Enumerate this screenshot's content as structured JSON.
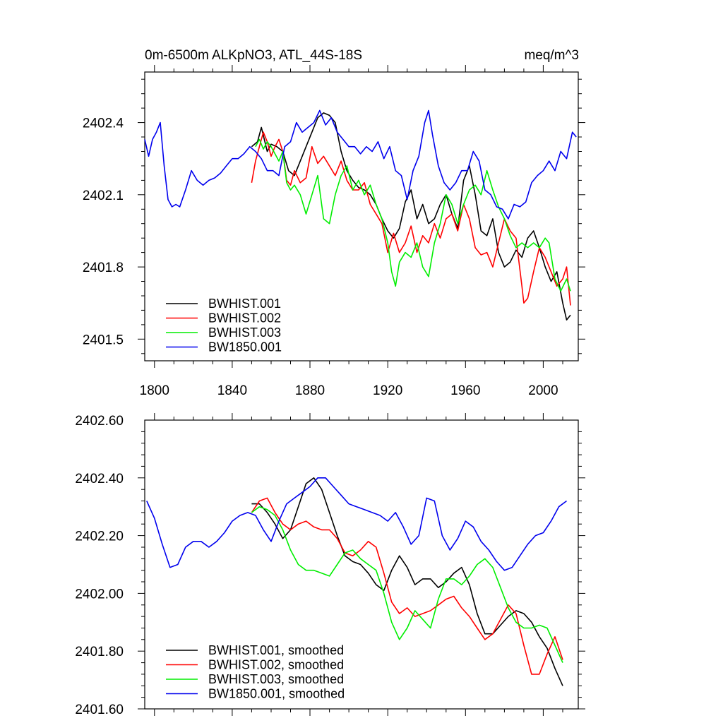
{
  "chart_data": [
    {
      "type": "line",
      "title": "0m-6500m ALKpNO3, ATL_44S-18S",
      "units": "meq/m^3",
      "xlim": [
        1795,
        2018
      ],
      "ylim": [
        2401.41,
        2402.61
      ],
      "x_ticks": [
        1800,
        1840,
        1880,
        1920,
        1960,
        2000
      ],
      "x_tick_labels": [
        "1800",
        "1840",
        "1880",
        "1920",
        "1960",
        "2000"
      ],
      "y_ticks": [
        2401.5,
        2401.8,
        2402.1,
        2402.4
      ],
      "y_tick_labels": [
        "2401.5",
        "2401.8",
        "2402.1",
        "2402.4"
      ],
      "legend": "bottom-left",
      "series": [
        {
          "name": "BWHIST.001",
          "color": "#000000",
          "x": [
            1850,
            1853,
            1855,
            1858,
            1860,
            1863,
            1866,
            1869,
            1872,
            1875,
            1878,
            1881,
            1884,
            1887,
            1890,
            1893,
            1896,
            1899,
            1902,
            1905,
            1908,
            1911,
            1914,
            1917,
            1920,
            1923,
            1926,
            1929,
            1932,
            1935,
            1938,
            1941,
            1944,
            1947,
            1950,
            1953,
            1956,
            1959,
            1962,
            1965,
            1968,
            1971,
            1974,
            1977,
            1980,
            1983,
            1986,
            1989,
            1992,
            1995,
            1998,
            2001,
            2004,
            2007,
            2010,
            2012,
            2014
          ],
          "y": [
            2402.3,
            2402.32,
            2402.38,
            2402.28,
            2402.31,
            2402.3,
            2402.28,
            2402.2,
            2402.18,
            2402.24,
            2402.3,
            2402.36,
            2402.42,
            2402.44,
            2402.43,
            2402.4,
            2402.28,
            2402.2,
            2402.16,
            2402.13,
            2402.12,
            2402.1,
            2402.06,
            2402.0,
            2401.95,
            2401.92,
            2401.96,
            2402.07,
            2402.12,
            2402.0,
            2402.06,
            2401.98,
            2402.0,
            2402.06,
            2402.1,
            2402.02,
            2401.96,
            2402.16,
            2402.22,
            2402.1,
            2401.95,
            2401.93,
            2402.0,
            2401.86,
            2401.8,
            2401.82,
            2401.87,
            2401.84,
            2401.92,
            2401.95,
            2401.88,
            2401.8,
            2401.74,
            2401.78,
            2401.65,
            2401.58,
            2401.6
          ]
        },
        {
          "name": "BWHIST.002",
          "color": "#ff0000",
          "x": [
            1850,
            1852,
            1854,
            1856,
            1858,
            1860,
            1862,
            1864,
            1866,
            1868,
            1870,
            1872,
            1875,
            1878,
            1881,
            1884,
            1887,
            1890,
            1893,
            1896,
            1899,
            1902,
            1905,
            1908,
            1911,
            1914,
            1917,
            1920,
            1923,
            1926,
            1929,
            1932,
            1935,
            1938,
            1941,
            1944,
            1947,
            1950,
            1953,
            1956,
            1959,
            1962,
            1965,
            1968,
            1971,
            1974,
            1977,
            1980,
            1983,
            1986,
            1989,
            1990,
            1992,
            1995,
            1998,
            2001,
            2004,
            2007,
            2010,
            2012,
            2014
          ],
          "y": [
            2402.15,
            2402.24,
            2402.3,
            2402.36,
            2402.32,
            2402.26,
            2402.3,
            2402.33,
            2402.28,
            2402.16,
            2402.14,
            2402.2,
            2402.15,
            2402.17,
            2402.3,
            2402.23,
            2402.26,
            2402.22,
            2402.18,
            2402.24,
            2402.16,
            2402.12,
            2402.12,
            2402.15,
            2402.06,
            2402.02,
            2401.98,
            2401.86,
            2401.94,
            2401.86,
            2401.9,
            2401.97,
            2401.86,
            2401.93,
            2401.9,
            2401.98,
            2401.92,
            2402.0,
            2402.02,
            2401.95,
            2402.06,
            2402.0,
            2401.88,
            2401.85,
            2401.86,
            2401.8,
            2401.9,
            2402.0,
            2401.95,
            2401.92,
            2401.72,
            2401.65,
            2401.67,
            2401.78,
            2401.88,
            2401.84,
            2401.78,
            2401.72,
            2401.75,
            2401.8,
            2401.64
          ]
        },
        {
          "name": "BWHIST.003",
          "color": "#00ee00",
          "x": [
            1852,
            1854,
            1856,
            1858,
            1860,
            1862,
            1864,
            1866,
            1868,
            1870,
            1872,
            1875,
            1878,
            1881,
            1884,
            1887,
            1890,
            1893,
            1896,
            1899,
            1902,
            1905,
            1908,
            1911,
            1914,
            1917,
            1920,
            1922,
            1924,
            1926,
            1929,
            1932,
            1935,
            1938,
            1941,
            1944,
            1947,
            1950,
            1953,
            1956,
            1959,
            1962,
            1965,
            1968,
            1971,
            1974,
            1977,
            1980,
            1983,
            1986,
            1989,
            1992,
            1995,
            1998,
            2001,
            2003,
            2006,
            2009,
            2012,
            2014
          ],
          "y": [
            2402.3,
            2402.33,
            2402.29,
            2402.32,
            2402.3,
            2402.27,
            2402.24,
            2402.28,
            2402.15,
            2402.12,
            2402.14,
            2402.1,
            2402.02,
            2402.1,
            2402.18,
            2402.0,
            2401.98,
            2402.1,
            2402.18,
            2402.22,
            2402.12,
            2402.16,
            2402.1,
            2402.14,
            2402.06,
            2402.0,
            2401.9,
            2401.78,
            2401.72,
            2401.82,
            2401.86,
            2401.84,
            2401.9,
            2401.8,
            2401.76,
            2401.9,
            2401.98,
            2402.1,
            2402.06,
            2401.98,
            2402.06,
            2402.12,
            2402.14,
            2402.1,
            2402.2,
            2402.12,
            2402.05,
            2402.0,
            2401.93,
            2401.88,
            2401.9,
            2401.88,
            2401.9,
            2401.88,
            2401.92,
            2401.9,
            2401.75,
            2401.7,
            2401.75,
            2401.7
          ]
        },
        {
          "name": "BW1850.001",
          "color": "#0000ee",
          "x": [
            1795,
            1797,
            1799,
            1801,
            1803,
            1805,
            1807,
            1809,
            1811,
            1813,
            1816,
            1819,
            1822,
            1825,
            1828,
            1831,
            1834,
            1837,
            1840,
            1843,
            1846,
            1849,
            1852,
            1855,
            1858,
            1861,
            1864,
            1867,
            1870,
            1873,
            1876,
            1879,
            1882,
            1885,
            1888,
            1891,
            1894,
            1897,
            1900,
            1903,
            1906,
            1909,
            1912,
            1915,
            1918,
            1921,
            1924,
            1927,
            1930,
            1933,
            1936,
            1939,
            1941,
            1943,
            1946,
            1949,
            1952,
            1955,
            1958,
            1961,
            1964,
            1967,
            1970,
            1973,
            1976,
            1979,
            1982,
            1985,
            1988,
            1991,
            1994,
            1997,
            2000,
            2003,
            2006,
            2009,
            2012,
            2015,
            2017
          ],
          "y": [
            2402.33,
            2402.26,
            2402.33,
            2402.36,
            2402.4,
            2402.22,
            2402.08,
            2402.05,
            2402.06,
            2402.05,
            2402.12,
            2402.2,
            2402.16,
            2402.14,
            2402.16,
            2402.17,
            2402.19,
            2402.22,
            2402.25,
            2402.25,
            2402.27,
            2402.3,
            2402.28,
            2402.25,
            2402.2,
            2402.2,
            2402.18,
            2402.3,
            2402.32,
            2402.4,
            2402.36,
            2402.38,
            2402.4,
            2402.45,
            2402.39,
            2402.42,
            2402.36,
            2402.33,
            2402.3,
            2402.3,
            2402.27,
            2402.3,
            2402.28,
            2402.32,
            2402.25,
            2402.3,
            2402.2,
            2402.18,
            2402.08,
            2402.2,
            2402.26,
            2402.4,
            2402.45,
            2402.35,
            2402.22,
            2402.15,
            2402.12,
            2402.15,
            2402.2,
            2402.2,
            2402.28,
            2402.24,
            2402.12,
            2402.1,
            2402.05,
            2402.04,
            2402.0,
            2402.06,
            2402.05,
            2402.07,
            2402.15,
            2402.18,
            2402.2,
            2402.24,
            2402.2,
            2402.28,
            2402.25,
            2402.36,
            2402.34
          ]
        }
      ]
    },
    {
      "type": "line",
      "title": "",
      "xlim": [
        1795,
        2018
      ],
      "ylim": [
        2401.6,
        2402.6
      ],
      "x_ticks": [
        1800,
        1840,
        1880,
        1920,
        1960,
        2000
      ],
      "y_ticks": [
        2401.6,
        2401.8,
        2402.0,
        2402.2,
        2402.4,
        2402.6
      ],
      "y_tick_labels": [
        "2401.60",
        "2401.80",
        "2402.00",
        "2402.20",
        "2402.40",
        "2402.60"
      ],
      "legend": "bottom-left",
      "series": [
        {
          "name": "BWHIST.001, smoothed",
          "color": "#000000",
          "x": [
            1850,
            1854,
            1858,
            1862,
            1866,
            1870,
            1874,
            1878,
            1882,
            1886,
            1890,
            1894,
            1898,
            1902,
            1906,
            1910,
            1914,
            1918,
            1922,
            1926,
            1930,
            1934,
            1938,
            1942,
            1946,
            1950,
            1954,
            1958,
            1962,
            1966,
            1970,
            1974,
            1978,
            1982,
            1986,
            1990,
            1994,
            1998,
            2002,
            2006,
            2010
          ],
          "y": [
            2402.31,
            2402.31,
            2402.28,
            2402.24,
            2402.19,
            2402.22,
            2402.3,
            2402.38,
            2402.4,
            2402.36,
            2402.28,
            2402.2,
            2402.13,
            2402.11,
            2402.1,
            2402.07,
            2402.03,
            2402.01,
            2402.08,
            2402.13,
            2402.09,
            2402.03,
            2402.05,
            2402.05,
            2402.02,
            2402.04,
            2402.07,
            2402.09,
            2402.03,
            2401.93,
            2401.86,
            2401.86,
            2401.89,
            2401.92,
            2401.94,
            2401.93,
            2401.9,
            2401.85,
            2401.81,
            2401.74,
            2401.68
          ]
        },
        {
          "name": "BWHIST.002, smoothed",
          "color": "#ff0000",
          "x": [
            1850,
            1854,
            1858,
            1862,
            1866,
            1870,
            1874,
            1878,
            1882,
            1886,
            1890,
            1894,
            1898,
            1902,
            1906,
            1910,
            1914,
            1918,
            1922,
            1926,
            1930,
            1934,
            1938,
            1942,
            1946,
            1950,
            1954,
            1958,
            1962,
            1966,
            1970,
            1974,
            1978,
            1982,
            1986,
            1990,
            1994,
            1998,
            2002,
            2006,
            2010
          ],
          "y": [
            2402.28,
            2402.32,
            2402.33,
            2402.28,
            2402.24,
            2402.22,
            2402.24,
            2402.25,
            2402.23,
            2402.22,
            2402.22,
            2402.19,
            2402.14,
            2402.13,
            2402.15,
            2402.18,
            2402.16,
            2402.07,
            2401.97,
            2401.93,
            2401.95,
            2401.92,
            2401.93,
            2401.94,
            2401.96,
            2401.98,
            2401.99,
            2401.95,
            2401.92,
            2401.88,
            2401.84,
            2401.86,
            2401.91,
            2401.96,
            2401.93,
            2401.82,
            2401.72,
            2401.72,
            2401.79,
            2401.85,
            2401.77
          ]
        },
        {
          "name": "BWHIST.003, smoothed",
          "color": "#00ee00",
          "x": [
            1850,
            1854,
            1858,
            1862,
            1866,
            1870,
            1874,
            1878,
            1882,
            1886,
            1890,
            1894,
            1898,
            1902,
            1906,
            1910,
            1914,
            1918,
            1922,
            1926,
            1930,
            1934,
            1938,
            1942,
            1946,
            1950,
            1954,
            1958,
            1962,
            1966,
            1970,
            1974,
            1978,
            1982,
            1986,
            1990,
            1994,
            1998,
            2002,
            2006,
            2010
          ],
          "y": [
            2402.28,
            2402.3,
            2402.29,
            2402.27,
            2402.22,
            2402.15,
            2402.1,
            2402.08,
            2402.08,
            2402.07,
            2402.06,
            2402.1,
            2402.14,
            2402.15,
            2402.12,
            2402.1,
            2402.08,
            2402.0,
            2401.9,
            2401.84,
            2401.88,
            2401.94,
            2401.91,
            2401.88,
            2401.98,
            2402.05,
            2402.05,
            2402.03,
            2402.06,
            2402.1,
            2402.12,
            2402.09,
            2402.02,
            2401.95,
            2401.9,
            2401.88,
            2401.88,
            2401.89,
            2401.88,
            2401.82,
            2401.76
          ]
        },
        {
          "name": "BW1850.001, smoothed",
          "color": "#0000ee",
          "x": [
            1796,
            1800,
            1804,
            1808,
            1812,
            1816,
            1820,
            1824,
            1828,
            1832,
            1836,
            1840,
            1844,
            1848,
            1852,
            1856,
            1860,
            1864,
            1868,
            1872,
            1876,
            1880,
            1884,
            1888,
            1892,
            1896,
            1900,
            1904,
            1908,
            1912,
            1916,
            1920,
            1924,
            1928,
            1932,
            1936,
            1940,
            1944,
            1948,
            1952,
            1956,
            1960,
            1964,
            1968,
            1972,
            1976,
            1980,
            1984,
            1988,
            1992,
            1996,
            2000,
            2004,
            2008,
            2012
          ],
          "y": [
            2402.32,
            2402.26,
            2402.17,
            2402.09,
            2402.1,
            2402.16,
            2402.18,
            2402.18,
            2402.16,
            2402.18,
            2402.21,
            2402.25,
            2402.27,
            2402.28,
            2402.27,
            2402.22,
            2402.18,
            2402.25,
            2402.31,
            2402.33,
            2402.35,
            2402.37,
            2402.4,
            2402.4,
            2402.37,
            2402.34,
            2402.31,
            2402.3,
            2402.29,
            2402.28,
            2402.27,
            2402.25,
            2402.28,
            2402.23,
            2402.17,
            2402.2,
            2402.33,
            2402.32,
            2402.2,
            2402.15,
            2402.19,
            2402.25,
            2402.23,
            2402.18,
            2402.15,
            2402.11,
            2402.08,
            2402.09,
            2402.13,
            2402.17,
            2402.2,
            2402.21,
            2402.25,
            2402.3,
            2402.32
          ]
        }
      ]
    }
  ]
}
